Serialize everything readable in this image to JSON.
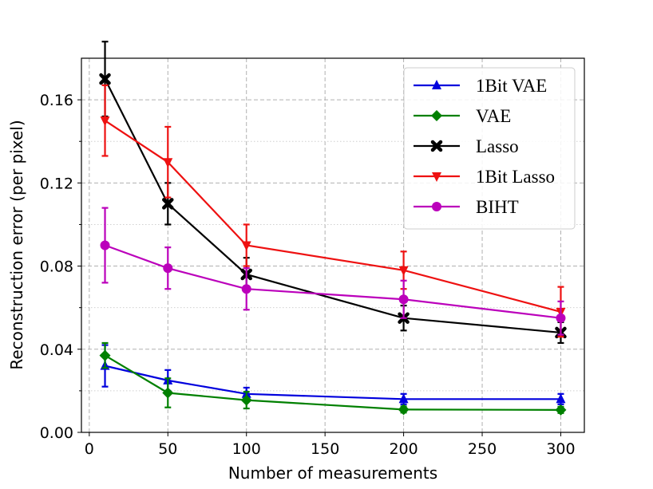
{
  "chart_data": {
    "type": "line",
    "title": "",
    "xlabel": "Number of measurements",
    "ylabel": "Reconstruction error (per pixel)",
    "xlim": [
      -5,
      315
    ],
    "ylim": [
      0,
      0.18
    ],
    "xticks": [
      0,
      50,
      100,
      150,
      200,
      250,
      300
    ],
    "xtick_labels": [
      "0",
      "50",
      "100",
      "150",
      "200",
      "250",
      "300"
    ],
    "yticks": [
      0.0,
      0.04,
      0.08,
      0.12,
      0.16
    ],
    "ytick_labels": [
      "0.00",
      "0.04",
      "0.08",
      "0.12",
      "0.16"
    ],
    "yminor_ticks": [
      0.02,
      0.06,
      0.1,
      0.14
    ],
    "grid": true,
    "legend_position": "top-right",
    "x": [
      10,
      50,
      100,
      200,
      300
    ],
    "series": [
      {
        "name": "1Bit VAE",
        "color": "#0000dd",
        "marker": "triangle-up",
        "values": [
          0.032,
          0.025,
          0.0185,
          0.016,
          0.016
        ],
        "errors": [
          0.01,
          0.005,
          0.003,
          0.0025,
          0.0025
        ]
      },
      {
        "name": "VAE",
        "color": "#008000",
        "marker": "diamond",
        "values": [
          0.037,
          0.019,
          0.0155,
          0.011,
          0.0108
        ],
        "errors": [
          0.006,
          0.007,
          0.004,
          0.0015,
          0.0015
        ]
      },
      {
        "name": "Lasso",
        "color": "#000000",
        "marker": "x-filled",
        "values": [
          0.17,
          0.11,
          0.076,
          0.055,
          0.048
        ],
        "errors": [
          0.018,
          0.01,
          0.008,
          0.006,
          0.005
        ]
      },
      {
        "name": "1Bit Lasso",
        "color": "#ee1111",
        "marker": "triangle-down",
        "values": [
          0.15,
          0.13,
          0.09,
          0.078,
          0.058
        ],
        "errors": [
          0.017,
          0.017,
          0.01,
          0.009,
          0.012
        ]
      },
      {
        "name": "BIHT",
        "color": "#bb00bb",
        "marker": "circle",
        "values": [
          0.09,
          0.079,
          0.069,
          0.064,
          0.055
        ],
        "errors": [
          0.018,
          0.01,
          0.01,
          0.009,
          0.008
        ]
      }
    ]
  }
}
